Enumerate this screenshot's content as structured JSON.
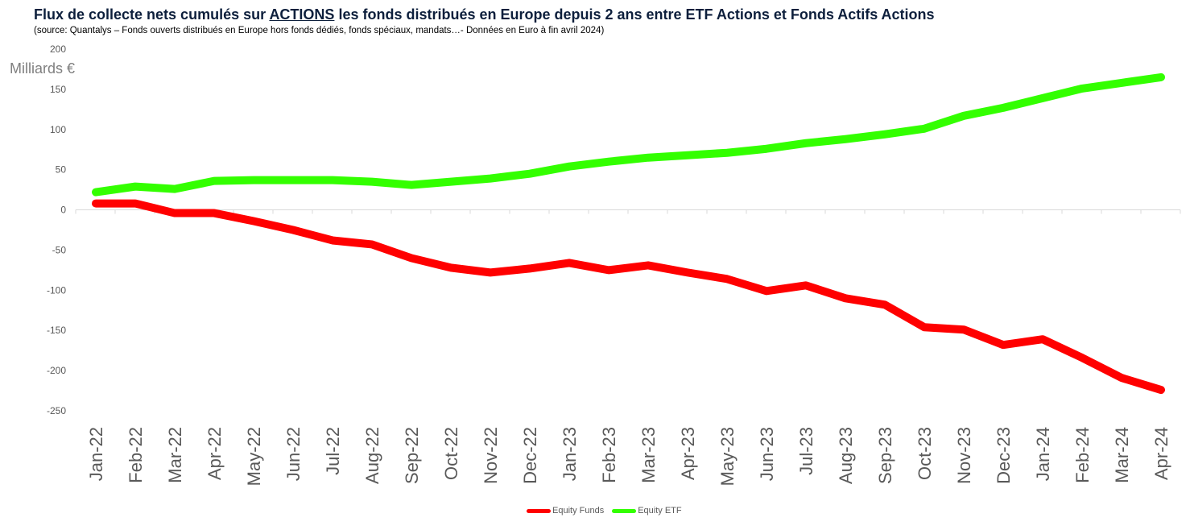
{
  "header": {
    "title_pre": "Flux de collecte nets cumulés sur ",
    "title_emph": "ACTIONS",
    "title_post": " les fonds distribués en Europe depuis 2 ans entre ETF Actions et Fonds Actifs Actions",
    "subtitle": "(source: Quantalys – Fonds ouverts distribués en Europe hors fonds dédiés, fonds spéciaux, mandats…- Données en Euro à fin avril 2024)"
  },
  "chart_data": {
    "type": "line",
    "title": "Flux de collecte nets cumulés sur ACTIONS les fonds distribués en Europe depuis 2 ans entre ETF Actions et Fonds Actifs Actions",
    "ylabel": "Milliards €",
    "xlabel": "",
    "ylim": [
      -250,
      200
    ],
    "yticks": [
      200,
      150,
      100,
      50,
      0,
      -50,
      -100,
      -150,
      -200,
      -250
    ],
    "grid": false,
    "legend_position": "bottom",
    "categories": [
      "Jan-22",
      "Feb-22",
      "Mar-22",
      "Apr-22",
      "May-22",
      "Jun-22",
      "Jul-22",
      "Aug-22",
      "Sep-22",
      "Oct-22",
      "Nov-22",
      "Dec-22",
      "Jan-23",
      "Feb-23",
      "Mar-23",
      "Apr-23",
      "May-23",
      "Jun-23",
      "Jul-23",
      "Aug-23",
      "Sep-23",
      "Oct-23",
      "Nov-23",
      "Dec-23",
      "Jan-24",
      "Feb-24",
      "Mar-24",
      "Apr-24"
    ],
    "series": [
      {
        "name": "Equity Funds",
        "color": "#ff0000",
        "values": [
          8,
          8,
          -4,
          -4,
          -14,
          -25,
          -38,
          -43,
          -60,
          -72,
          -78,
          -73,
          -66,
          -75,
          -69,
          -78,
          -86,
          -101,
          -94,
          -110,
          -118,
          -146,
          -149,
          -168,
          -161,
          -184,
          -209,
          -224
        ]
      },
      {
        "name": "Equity ETF",
        "color": "#33ff00",
        "values": [
          22,
          29,
          26,
          36,
          37,
          37,
          37,
          35,
          31,
          35,
          39,
          45,
          54,
          60,
          65,
          68,
          71,
          76,
          83,
          88,
          94,
          101,
          117,
          127,
          139,
          151,
          158,
          165
        ]
      }
    ]
  }
}
